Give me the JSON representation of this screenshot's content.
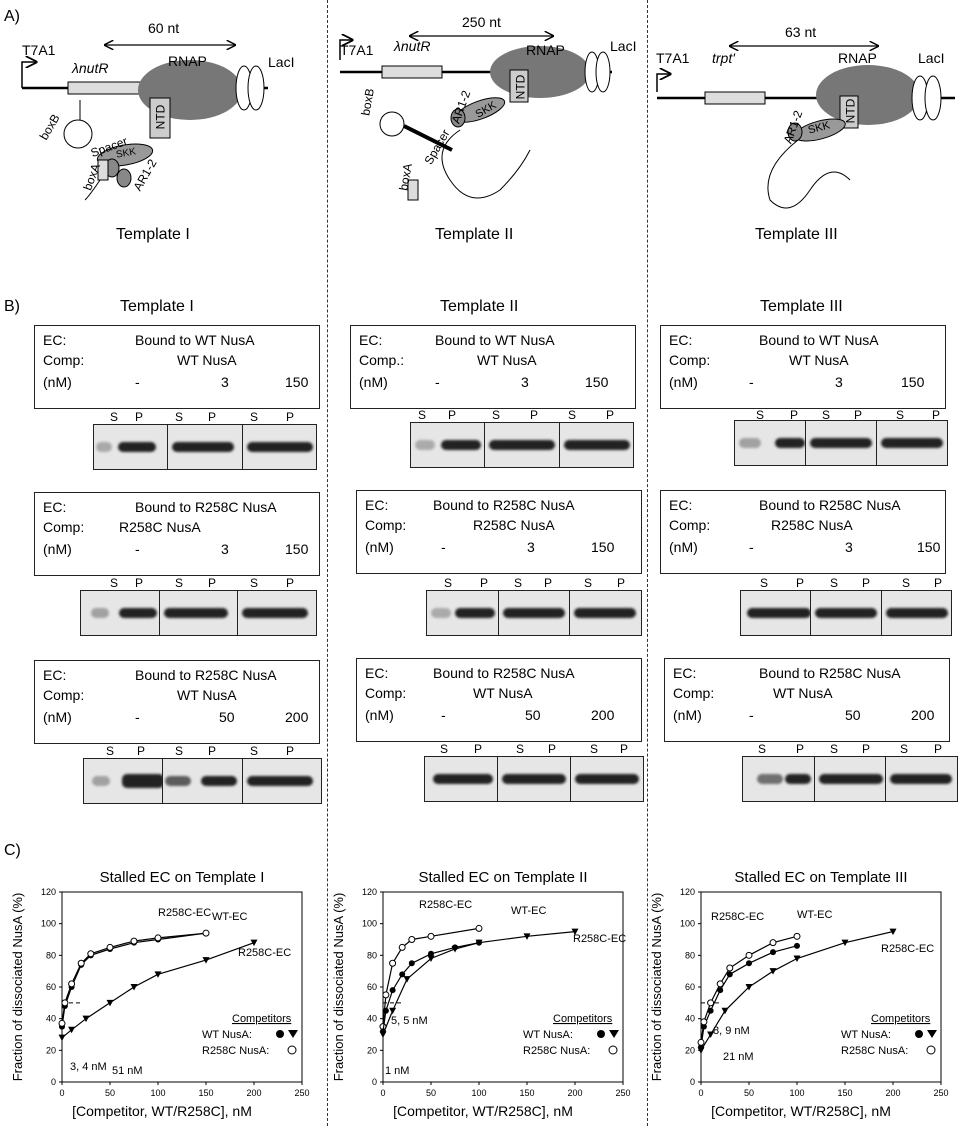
{
  "panel_labels": {
    "a": "A)",
    "b": "B)",
    "c": "C)"
  },
  "panelA": [
    {
      "promoter": "T7A1",
      "element": "λnutR",
      "distance": "60 nt",
      "rnap": "RNAP",
      "laci": "LacI",
      "parts": [
        "boxB",
        "boxA",
        "Spacer",
        "SKK",
        "AR1-2",
        "NTD"
      ],
      "caption": "Template I"
    },
    {
      "promoter": "T7A1",
      "element": "λnutR",
      "distance": "250 nt",
      "rnap": "RNAP",
      "laci": "LacI",
      "parts": [
        "boxB",
        "boxA",
        "Spacer",
        "SKK",
        "AR1-2",
        "NTD"
      ],
      "caption": "Template II"
    },
    {
      "promoter": "T7A1",
      "element": "trpt'",
      "distance": "63 nt",
      "rnap": "RNAP",
      "laci": "LacI",
      "parts": [
        "AR1-2",
        "SKK",
        "NTD"
      ],
      "caption": "Template III"
    }
  ],
  "panelB": {
    "columns": [
      "Template I",
      "Template II",
      "Template III"
    ],
    "lane_s": "S",
    "lane_p": "P",
    "ec_label": "EC:",
    "comp_labels": [
      "Comp:",
      "Comp.:",
      "Comp:"
    ],
    "nm_label": "(nM)",
    "rows": [
      {
        "ec": "Bound to WT NusA",
        "comp": "WT NusA",
        "conc": [
          "-",
          "3",
          "150"
        ]
      },
      {
        "ec": "Bound to R258C NusA",
        "comp": "R258C NusA",
        "conc": [
          "-",
          "3",
          "150"
        ]
      },
      {
        "ec": "Bound to R258C NusA",
        "comp": "WT NusA",
        "conc": [
          "-",
          "50",
          "200"
        ]
      }
    ]
  },
  "panelC": {
    "ylabel": "Fraction of dissociated NusA (%)",
    "xlabel": "[Competitor, WT/R258C], nM",
    "legend_title": "Competitors",
    "legend_wt": "WT NusA:",
    "legend_r": "R258C NusA:",
    "yticks": [
      "0",
      "20",
      "40",
      "60",
      "80",
      "100",
      "120"
    ],
    "xticks": [
      "0",
      "50",
      "100",
      "150",
      "200",
      "250"
    ],
    "charts": [
      {
        "title": "Stalled EC on Template I",
        "annotations": [
          "R258C-EC",
          "WT-EC",
          "R258C-EC"
        ],
        "kd_labels": [
          "3, 4 nM",
          "51 nM"
        ]
      },
      {
        "title": "Stalled EC on Template II",
        "annotations": [
          "R258C-EC",
          "WT-EC",
          "R258C-EC"
        ],
        "kd_labels": [
          "5, 5 nM",
          "1 nM"
        ]
      },
      {
        "title": "Stalled EC on Template III",
        "annotations": [
          "R258C-EC",
          "WT-EC",
          "R258C-EC"
        ],
        "kd_labels": [
          "8, 9 nM",
          "21 nM"
        ]
      }
    ]
  },
  "chart_data": [
    {
      "type": "scatter",
      "title": "Stalled EC on Template I",
      "xlabel": "[Competitor, WT/R258C], nM",
      "ylabel": "Fraction of dissociated NusA (%)",
      "xlim": [
        0,
        250
      ],
      "ylim": [
        0,
        120
      ],
      "series": [
        {
          "name": "WT-EC",
          "marker": "filled-circle",
          "x": [
            0,
            3,
            10,
            20,
            30,
            50,
            75,
            100,
            150
          ],
          "y": [
            35,
            48,
            60,
            74,
            80,
            84,
            88,
            90,
            94
          ]
        },
        {
          "name": "R258C-EC",
          "marker": "open-circle",
          "x": [
            0,
            3,
            10,
            20,
            30,
            50,
            75,
            100,
            150
          ],
          "y": [
            37,
            50,
            62,
            75,
            81,
            85,
            89,
            91,
            94
          ]
        },
        {
          "name": "R258C-EC",
          "marker": "filled-triangle",
          "x": [
            0,
            10,
            25,
            50,
            75,
            100,
            150,
            200
          ],
          "y": [
            28,
            33,
            40,
            50,
            60,
            68,
            77,
            88
          ]
        }
      ]
    },
    {
      "type": "scatter",
      "title": "Stalled EC on Template II",
      "xlabel": "[Competitor, WT/R258C], nM",
      "ylabel": "Fraction of dissociated NusA (%)",
      "xlim": [
        0,
        250
      ],
      "ylim": [
        0,
        120
      ],
      "series": [
        {
          "name": "R258C-EC",
          "marker": "open-circle",
          "x": [
            0,
            3,
            10,
            20,
            30,
            50,
            100
          ],
          "y": [
            35,
            55,
            75,
            85,
            90,
            92,
            97
          ]
        },
        {
          "name": "WT-EC",
          "marker": "filled-circle",
          "x": [
            0,
            3,
            10,
            20,
            30,
            50,
            75,
            100
          ],
          "y": [
            32,
            45,
            58,
            68,
            75,
            81,
            85,
            88
          ]
        },
        {
          "name": "R258C-EC",
          "marker": "filled-triangle",
          "x": [
            0,
            10,
            25,
            50,
            75,
            100,
            150,
            200
          ],
          "y": [
            30,
            45,
            65,
            78,
            84,
            88,
            92,
            95
          ]
        }
      ]
    },
    {
      "type": "scatter",
      "title": "Stalled EC on Template III",
      "xlabel": "[Competitor, WT/R258C], nM",
      "ylabel": "Fraction of dissociated NusA (%)",
      "xlim": [
        0,
        250
      ],
      "ylim": [
        0,
        120
      ],
      "series": [
        {
          "name": "WT-EC",
          "marker": "filled-circle",
          "x": [
            0,
            3,
            10,
            20,
            30,
            50,
            75,
            100
          ],
          "y": [
            22,
            35,
            45,
            58,
            68,
            75,
            82,
            86
          ]
        },
        {
          "name": "R258C-EC",
          "marker": "open-circle",
          "x": [
            0,
            3,
            10,
            20,
            30,
            50,
            75,
            100
          ],
          "y": [
            25,
            38,
            50,
            62,
            72,
            80,
            88,
            92
          ]
        },
        {
          "name": "R258C-EC",
          "marker": "filled-triangle",
          "x": [
            0,
            10,
            25,
            50,
            75,
            100,
            150,
            200
          ],
          "y": [
            20,
            30,
            45,
            60,
            70,
            78,
            88,
            95
          ]
        }
      ]
    }
  ]
}
